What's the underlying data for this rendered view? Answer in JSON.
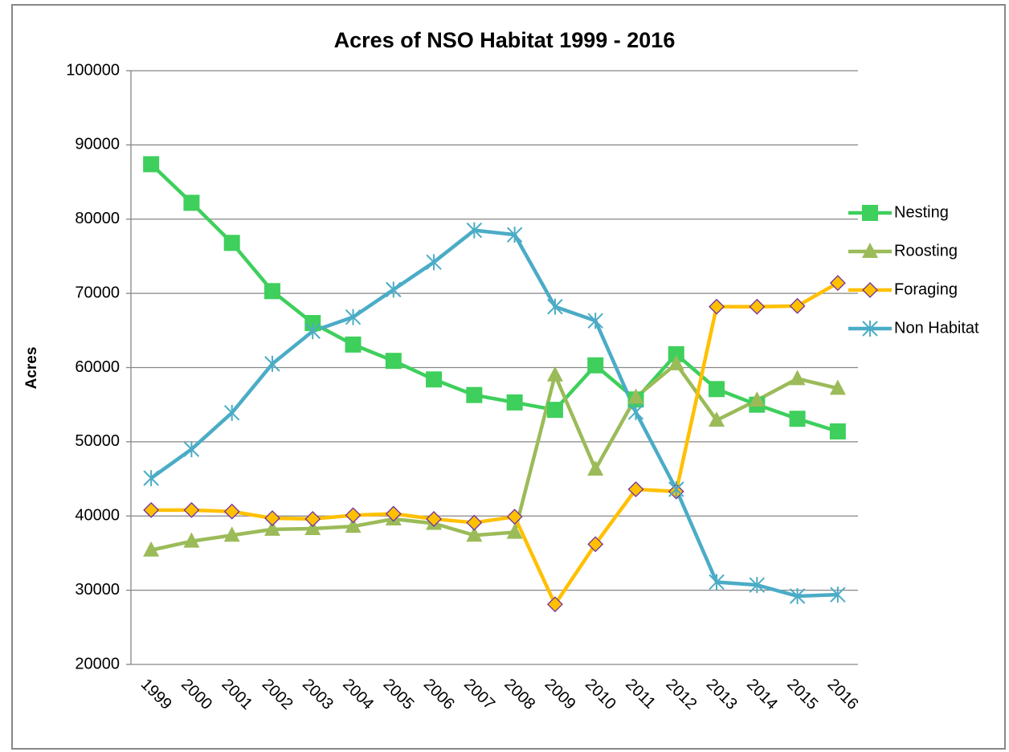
{
  "chart_data": {
    "type": "line",
    "title": "Acres of NSO Habitat 1999 - 2016",
    "y_label": "Acres",
    "categories": [
      "1999",
      "2000",
      "2001",
      "2002",
      "2003",
      "2004",
      "2005",
      "2006",
      "2007",
      "2008",
      "2009",
      "2010",
      "2011",
      "2012",
      "2013",
      "2014",
      "2015",
      "2016"
    ],
    "ylim": [
      20000,
      100000
    ],
    "yticks": [
      20000,
      30000,
      40000,
      50000,
      60000,
      70000,
      80000,
      90000,
      100000
    ],
    "grid": true,
    "legend": "right",
    "series": [
      {
        "name": "Nesting",
        "color": "#3ecf5c",
        "marker": "square",
        "values": [
          87400,
          82200,
          76800,
          70300,
          66000,
          63100,
          60900,
          58400,
          56300,
          55300,
          54300,
          60300,
          55700,
          61800,
          57100,
          55000,
          53100,
          51400
        ]
      },
      {
        "name": "Roosting",
        "color": "#9bbb59",
        "marker": "triangle",
        "values": [
          35400,
          36600,
          37400,
          38200,
          38300,
          38600,
          39600,
          39000,
          37400,
          37800,
          59000,
          46300,
          56000,
          60500,
          52900,
          55600,
          58500,
          57200
        ]
      },
      {
        "name": "Foraging",
        "color": "#ffc000",
        "marker": "diamond",
        "marker_edge": "#7030a0",
        "values": [
          40800,
          40800,
          40600,
          39700,
          39600,
          40100,
          40300,
          39600,
          39100,
          39900,
          28100,
          36200,
          43600,
          43300,
          68200,
          68200,
          68300,
          71400
        ]
      },
      {
        "name": "Non Habitat",
        "color": "#4bacc6",
        "marker": "star",
        "values": [
          45100,
          49000,
          53900,
          60500,
          64900,
          66800,
          70500,
          74200,
          78500,
          77900,
          68200,
          66300,
          54000,
          43600,
          31100,
          30700,
          29200,
          29400
        ]
      }
    ]
  }
}
